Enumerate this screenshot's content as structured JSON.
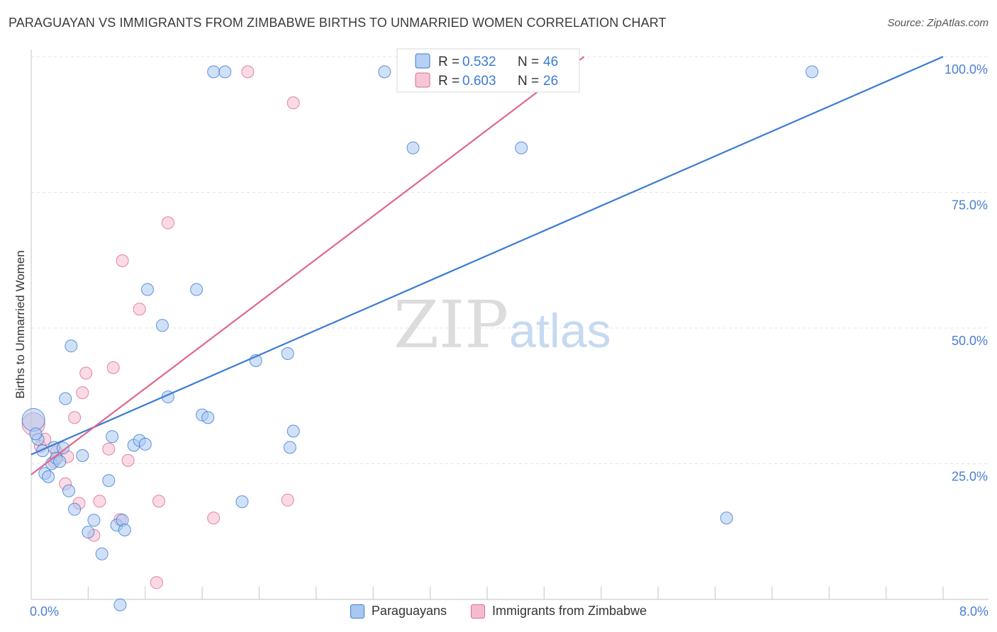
{
  "header": {
    "title": "PARAGUAYAN VS IMMIGRANTS FROM ZIMBABWE BIRTHS TO UNMARRIED WOMEN CORRELATION CHART",
    "source": "Source: ZipAtlas.com"
  },
  "watermark": {
    "zip": "ZIP",
    "atlas": "atlas"
  },
  "colors": {
    "blue": "#3a7bd5",
    "blue_fill": "#a9c8f0",
    "pink": "#e0668e",
    "pink_fill": "#f5bcd0",
    "axis_text": "#4a7fd0"
  },
  "legend": {
    "series": [
      {
        "r_label": "R =",
        "r_value": "0.532",
        "n_label": "N =",
        "n_value": "46"
      },
      {
        "r_label": "R =",
        "r_value": "0.603",
        "n_label": "N =",
        "n_value": "26"
      }
    ],
    "bottom": [
      "Paraguayans",
      "Immigrants from Zimbabwe"
    ]
  },
  "chart_data": {
    "type": "scatter",
    "title": "PARAGUAYAN VS IMMIGRANTS FROM ZIMBABWE BIRTHS TO UNMARRIED WOMEN CORRELATION CHART",
    "xlabel": "",
    "ylabel": "Births to Unmarried Women",
    "xlim": [
      0,
      8
    ],
    "ylim": [
      0,
      100
    ],
    "x_tick_labels": [
      {
        "value": 0,
        "label": "0.0%"
      },
      {
        "value": 8,
        "label": "8.0%"
      }
    ],
    "y_tick_labels": [
      {
        "value": 25,
        "label": "25.0%"
      },
      {
        "value": 50,
        "label": "50.0%"
      },
      {
        "value": 75,
        "label": "75.0%"
      },
      {
        "value": 100,
        "label": "100.0%"
      }
    ],
    "series": [
      {
        "name": "Paraguayans",
        "points": [
          [
            0.02,
            33.1
          ],
          [
            0.06,
            29.5
          ],
          [
            0.1,
            27.4
          ],
          [
            0.12,
            23.2
          ],
          [
            0.15,
            22.6
          ],
          [
            0.18,
            25.0
          ],
          [
            0.2,
            28.0
          ],
          [
            0.22,
            26.0
          ],
          [
            0.25,
            25.4
          ],
          [
            0.28,
            27.9
          ],
          [
            0.3,
            37.0
          ],
          [
            0.33,
            20.0
          ],
          [
            0.35,
            46.7
          ],
          [
            0.38,
            16.6
          ],
          [
            0.45,
            26.5
          ],
          [
            0.5,
            12.4
          ],
          [
            0.55,
            14.6
          ],
          [
            0.62,
            8.4
          ],
          [
            0.68,
            21.9
          ],
          [
            0.71,
            30.0
          ],
          [
            0.75,
            13.7
          ],
          [
            0.8,
            14.6
          ],
          [
            0.82,
            12.8
          ],
          [
            0.9,
            28.4
          ],
          [
            0.95,
            29.3
          ],
          [
            1.0,
            28.6
          ],
          [
            1.02,
            57.1
          ],
          [
            1.15,
            50.5
          ],
          [
            1.2,
            37.3
          ],
          [
            1.45,
            57.1
          ],
          [
            1.5,
            34.0
          ],
          [
            1.55,
            33.5
          ],
          [
            1.6,
            97.2
          ],
          [
            1.7,
            97.2
          ],
          [
            1.85,
            18.0
          ],
          [
            1.97,
            44.0
          ],
          [
            2.25,
            45.3
          ],
          [
            2.27,
            28.0
          ],
          [
            2.3,
            31.0
          ],
          [
            3.1,
            97.2
          ],
          [
            3.35,
            83.2
          ],
          [
            4.3,
            83.2
          ],
          [
            6.85,
            97.2
          ],
          [
            6.1,
            15.0
          ],
          [
            0.78,
            -1.0
          ],
          [
            0.04,
            30.5
          ]
        ],
        "trend": {
          "x": [
            0,
            8
          ],
          "y": [
            26.7,
            100.0
          ]
        }
      },
      {
        "name": "Immigrants from Zimbabwe",
        "points": [
          [
            0.02,
            32.3
          ],
          [
            0.08,
            28.2
          ],
          [
            0.12,
            29.5
          ],
          [
            0.2,
            25.4
          ],
          [
            0.32,
            26.3
          ],
          [
            0.3,
            21.3
          ],
          [
            0.38,
            33.5
          ],
          [
            0.42,
            17.7
          ],
          [
            0.45,
            38.1
          ],
          [
            0.48,
            41.7
          ],
          [
            0.55,
            11.8
          ],
          [
            0.6,
            18.1
          ],
          [
            0.68,
            27.7
          ],
          [
            0.72,
            42.7
          ],
          [
            0.78,
            14.7
          ],
          [
            0.8,
            62.4
          ],
          [
            0.85,
            25.6
          ],
          [
            0.95,
            53.5
          ],
          [
            1.1,
            3.1
          ],
          [
            1.12,
            18.1
          ],
          [
            1.2,
            69.4
          ],
          [
            1.6,
            15.0
          ],
          [
            1.9,
            97.2
          ],
          [
            2.25,
            18.3
          ],
          [
            2.3,
            91.5
          ],
          [
            0.22,
            27.2
          ]
        ],
        "trend": {
          "x": [
            0,
            4.85
          ],
          "y": [
            23.0,
            100.0
          ]
        }
      }
    ]
  }
}
